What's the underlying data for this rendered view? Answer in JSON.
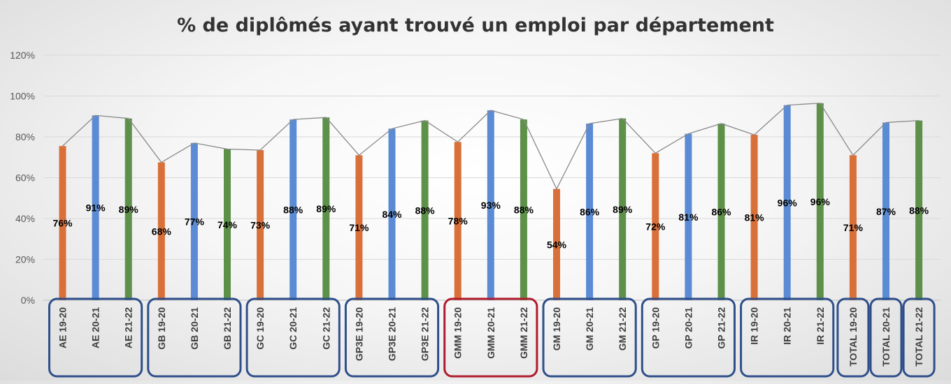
{
  "chart_data": {
    "type": "bar",
    "title": "% de diplômés ayant trouvé un emploi par département",
    "ylim": [
      0,
      1.2
    ],
    "yticks": [
      "0%",
      "20%",
      "40%",
      "60%",
      "80%",
      "100%",
      "120%"
    ],
    "grid": true,
    "overlay_line": true,
    "series_colors": {
      "19-20": "#d9703a",
      "20-21": "#5b8bd4",
      "21-22": "#5d9049"
    },
    "group_box_color": "#2f4f8a",
    "highlight_box_color": "#b01c2e",
    "highlight_group": "GMM",
    "groups": [
      {
        "name": "AE",
        "labels": [
          "AE 19-20",
          "AE 20-21",
          "AE 21-22"
        ]
      },
      {
        "name": "GB",
        "labels": [
          "GB 19-20",
          "GB 20-21",
          "GB 21-22"
        ]
      },
      {
        "name": "GC",
        "labels": [
          "GC 19-20",
          "GC 20-21",
          "GC 21-22"
        ]
      },
      {
        "name": "GP3E",
        "labels": [
          "GP3E 19-20",
          "GP3E 20-21",
          "GP3E 21-22"
        ]
      },
      {
        "name": "GMM",
        "labels": [
          "GMM 19-20",
          "GMM 20-21",
          "GMM 21-22"
        ]
      },
      {
        "name": "GM",
        "labels": [
          "GM 19-20",
          "GM 20-21",
          "GM 21-22"
        ]
      },
      {
        "name": "GP",
        "labels": [
          "GP 19-20",
          "GP 20-21",
          "GP 21-22"
        ]
      },
      {
        "name": "IR",
        "labels": [
          "IR 19-20",
          "IR 20-21",
          "IR 21-22"
        ]
      },
      {
        "name": "TOTAL 19-20",
        "labels": [
          "TOTAL 19-20"
        ]
      },
      {
        "name": "TOTAL 20-21",
        "labels": [
          "TOTAL 20-21"
        ]
      },
      {
        "name": "TOTAL 21-22",
        "labels": [
          "TOTAL 21-22"
        ]
      }
    ],
    "bars": [
      {
        "category": "AE 19-20",
        "period": "19-20",
        "value": 0.755,
        "label": "76%"
      },
      {
        "category": "AE 20-21",
        "period": "20-21",
        "value": 0.905,
        "label": "91%"
      },
      {
        "category": "AE 21-22",
        "period": "21-22",
        "value": 0.89,
        "label": "89%"
      },
      {
        "category": "GB 19-20",
        "period": "19-20",
        "value": 0.675,
        "label": "68%"
      },
      {
        "category": "GB 20-21",
        "period": "20-21",
        "value": 0.77,
        "label": "77%"
      },
      {
        "category": "GB 21-22",
        "period": "21-22",
        "value": 0.74,
        "label": "74%"
      },
      {
        "category": "GC 19-20",
        "period": "19-20",
        "value": 0.735,
        "label": "73%"
      },
      {
        "category": "GC 20-21",
        "period": "20-21",
        "value": 0.885,
        "label": "88%"
      },
      {
        "category": "GC 21-22",
        "period": "21-22",
        "value": 0.895,
        "label": "89%"
      },
      {
        "category": "GP3E 19-20",
        "period": "19-20",
        "value": 0.71,
        "label": "71%"
      },
      {
        "category": "GP3E 20-21",
        "period": "20-21",
        "value": 0.84,
        "label": "84%"
      },
      {
        "category": "GP3E 21-22",
        "period": "21-22",
        "value": 0.88,
        "label": "88%"
      },
      {
        "category": "GMM 19-20",
        "period": "19-20",
        "value": 0.775,
        "label": "78%"
      },
      {
        "category": "GMM 20-21",
        "period": "20-21",
        "value": 0.93,
        "label": "93%"
      },
      {
        "category": "GMM 21-22",
        "period": "21-22",
        "value": 0.885,
        "label": "88%"
      },
      {
        "category": "GM 19-20",
        "period": "19-20",
        "value": 0.545,
        "label": "54%"
      },
      {
        "category": "GM 20-21",
        "period": "20-21",
        "value": 0.865,
        "label": "86%"
      },
      {
        "category": "GM 21-22",
        "period": "21-22",
        "value": 0.89,
        "label": "89%"
      },
      {
        "category": "GP 19-20",
        "period": "19-20",
        "value": 0.72,
        "label": "72%"
      },
      {
        "category": "GP 20-21",
        "period": "20-21",
        "value": 0.815,
        "label": "81%"
      },
      {
        "category": "GP 21-22",
        "period": "21-22",
        "value": 0.865,
        "label": "86%"
      },
      {
        "category": "IR 19-20",
        "period": "19-20",
        "value": 0.81,
        "label": "81%"
      },
      {
        "category": "IR 20-21",
        "period": "20-21",
        "value": 0.955,
        "label": "96%"
      },
      {
        "category": "IR 21-22",
        "period": "21-22",
        "value": 0.965,
        "label": "96%"
      },
      {
        "category": "TOTAL 19-20",
        "period": "19-20",
        "value": 0.71,
        "label": "71%"
      },
      {
        "category": "TOTAL 20-21",
        "period": "20-21",
        "value": 0.87,
        "label": "87%"
      },
      {
        "category": "TOTAL 21-22",
        "period": "21-22",
        "value": 0.88,
        "label": "88%"
      }
    ]
  }
}
